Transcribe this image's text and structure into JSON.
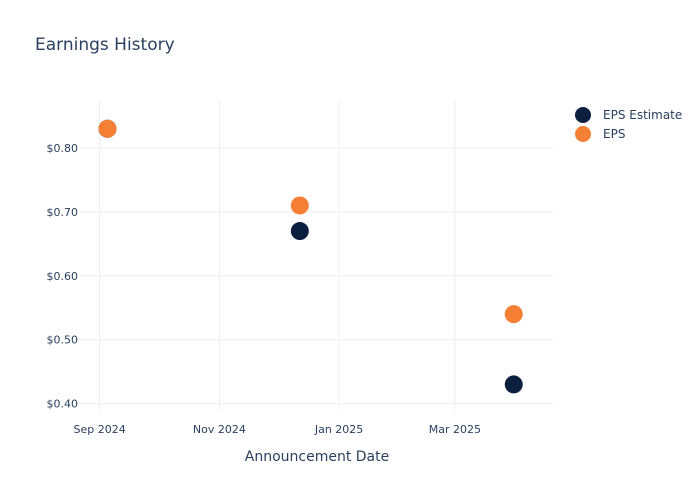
{
  "chart_data": {
    "type": "scatter",
    "title": "Earnings History",
    "xlabel": "Announcement Date",
    "ylabel": "",
    "x_ticks": [
      {
        "date": "2024-09-01",
        "label": "Sep 2024"
      },
      {
        "date": "2024-11-01",
        "label": "Nov 2024"
      },
      {
        "date": "2025-01-01",
        "label": "Jan 2025"
      },
      {
        "date": "2025-03-01",
        "label": "Mar 2025"
      }
    ],
    "x_range": [
      "2024-08-22",
      "2025-04-20"
    ],
    "y_ticks": [
      {
        "value": 0.4,
        "label": "$0.40"
      },
      {
        "value": 0.5,
        "label": "$0.50"
      },
      {
        "value": 0.6,
        "label": "$0.60"
      },
      {
        "value": 0.7,
        "label": "$0.70"
      },
      {
        "value": 0.8,
        "label": "$0.80"
      }
    ],
    "ylim": [
      0.39,
      0.875
    ],
    "grid": true,
    "legend_position": "top-right",
    "series": [
      {
        "name": "EPS Estimate",
        "color": "#0b1f3f",
        "points": [
          {
            "x": "2024-09-05",
            "y": 0.83
          },
          {
            "x": "2024-12-12",
            "y": 0.67
          },
          {
            "x": "2025-03-31",
            "y": 0.43
          }
        ]
      },
      {
        "name": "EPS",
        "color": "#f47f35",
        "points": [
          {
            "x": "2024-09-05",
            "y": 0.83
          },
          {
            "x": "2024-12-12",
            "y": 0.71
          },
          {
            "x": "2025-03-31",
            "y": 0.54
          }
        ]
      }
    ]
  }
}
